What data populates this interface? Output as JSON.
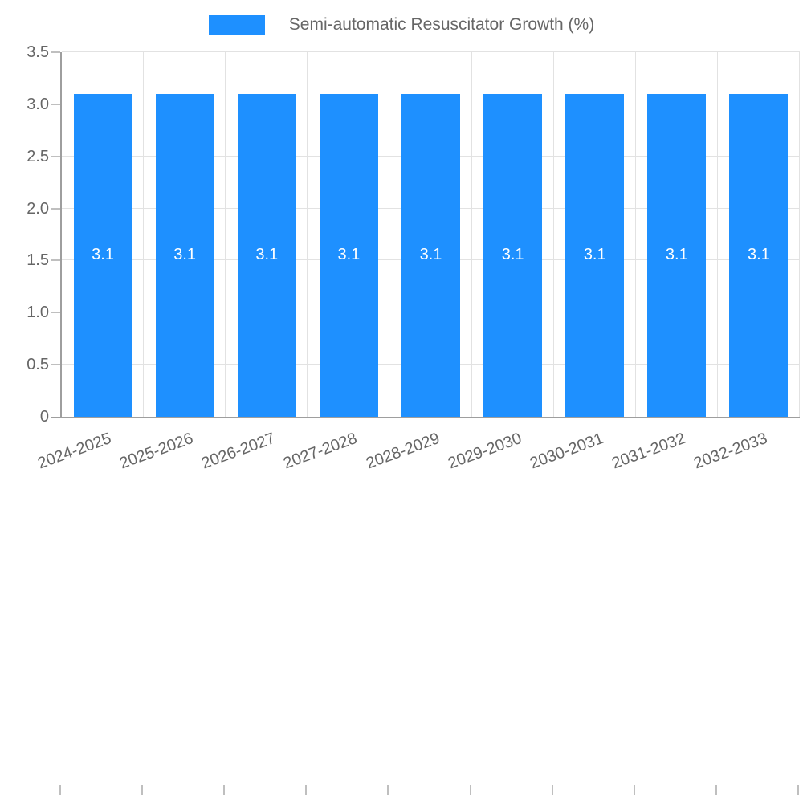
{
  "legend": {
    "label": "Semi-automatic Resuscitator Growth (%)"
  },
  "colors": {
    "bar": "#1E90FF",
    "bar_label": "#FFFFFF",
    "axis_line": "#9E9E9E",
    "grid_line": "#E2E2E2",
    "tick_mark": "#BFBFBF",
    "tick_label_text": "#666666",
    "legend_text": "#666666",
    "background": "#FFFFFF"
  },
  "chart_data": {
    "type": "bar",
    "title": "Semi-automatic Resuscitator Growth (%)",
    "categories": [
      "2024-2025",
      "2025-2026",
      "2026-2027",
      "2027-2028",
      "2028-2029",
      "2029-2030",
      "2030-2031",
      "2031-2032",
      "2032-2033"
    ],
    "series": [
      {
        "name": "Semi-automatic Resuscitator Growth (%)",
        "values": [
          3.1,
          3.1,
          3.1,
          3.1,
          3.1,
          3.1,
          3.1,
          3.1,
          3.1
        ]
      }
    ],
    "bar_labels": [
      "3.1",
      "3.1",
      "3.1",
      "3.1",
      "3.1",
      "3.1",
      "3.1",
      "3.1",
      "3.1"
    ],
    "xlabel": "",
    "ylabel": "",
    "ylim": [
      0,
      3.5
    ],
    "yticks": [
      0,
      0.5,
      1,
      1.5,
      2,
      2.5,
      3,
      3.5
    ],
    "ytick_labels": [
      "0",
      "0.5",
      "1.0",
      "1.5",
      "2.0",
      "2.5",
      "3.0",
      "3.5"
    ],
    "grid": true,
    "legend_position": "top-center"
  }
}
